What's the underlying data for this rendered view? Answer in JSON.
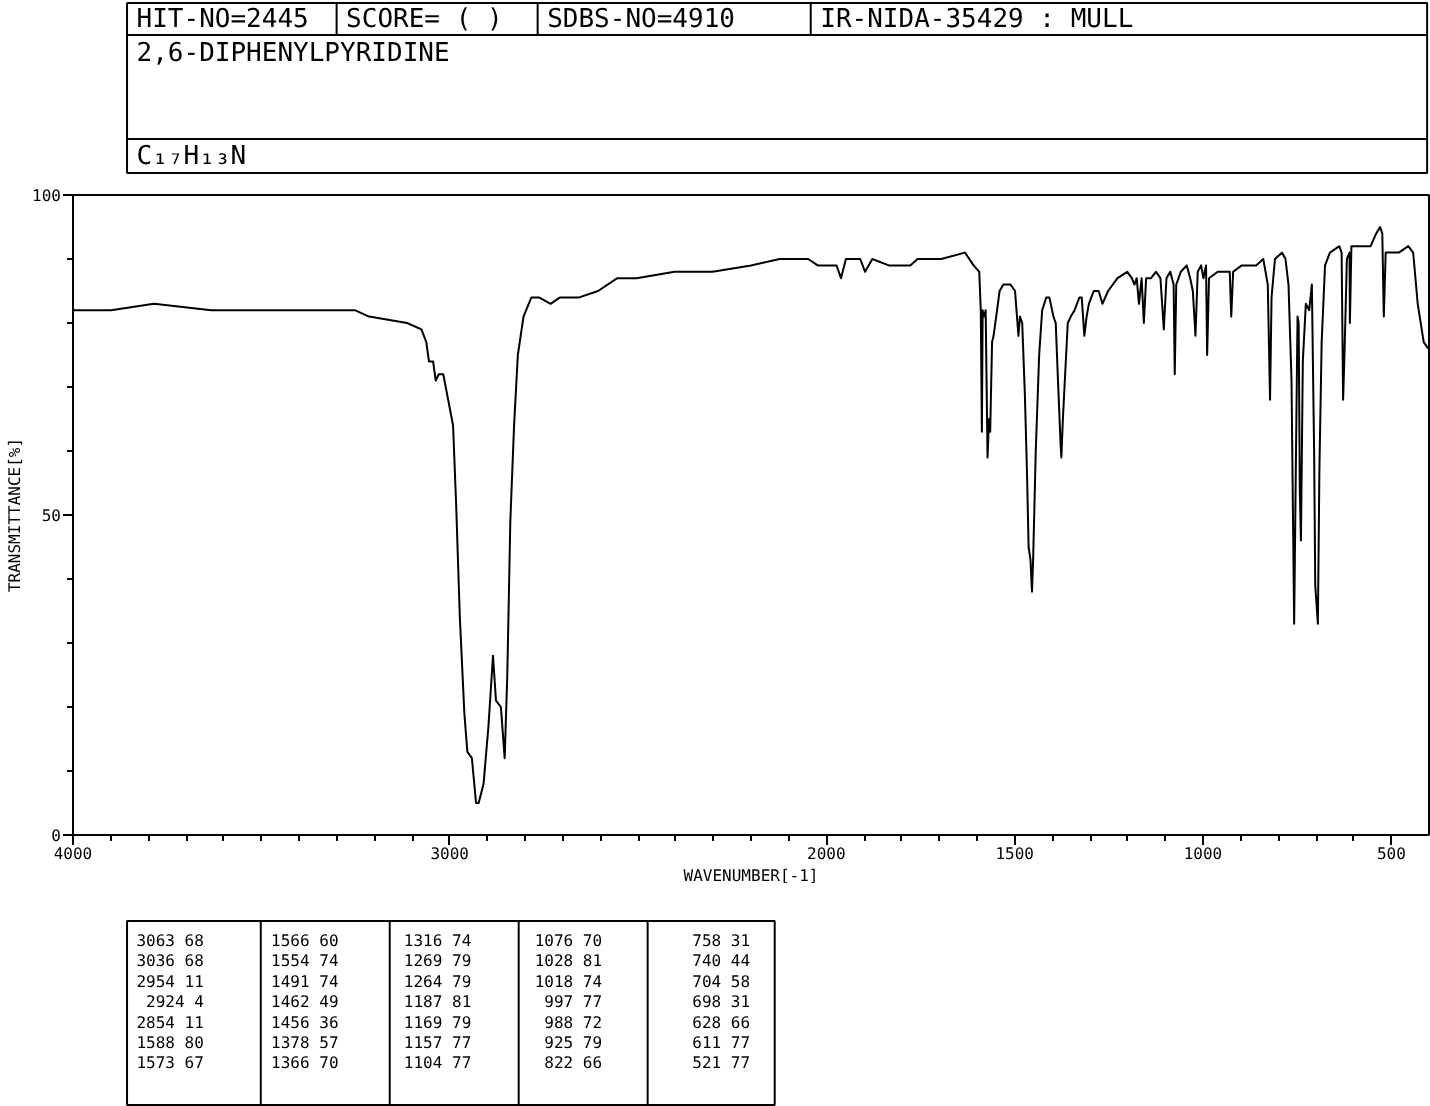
{
  "chart_data": {
    "type": "line",
    "title": "2,6-DIPHENYLPYRIDINE",
    "subtitle": "C₁₇H₁₃N",
    "xlabel": "WAVENUMBER[-1]",
    "ylabel": "TRANSMITTANCE[%]",
    "annotations": [
      "HIT-NO=2445",
      "SCORE=  (   )",
      "SDBS-NO=4910",
      "IR-NIDA-35429 : MULL",
      "3063 68",
      "3036 68",
      "2954 11",
      "2924 4",
      "2854 11",
      "1588 80",
      "1573 67",
      "1566 60",
      "1554 74",
      "1491 74",
      "1462 49",
      "1456 36",
      "1378 57",
      "1366 70",
      "1316 74",
      "1269 79",
      "1264 79",
      "1187 81",
      "1169 79",
      "1157 77",
      "1104 77",
      "1076 70",
      "1028 81",
      "1018 74",
      "997 77",
      "988 72",
      "925 79",
      "822 66",
      "758 31",
      "740 44",
      "704 58",
      "698 31",
      "628 66",
      "611 77",
      "521 77"
    ],
    "xlim": [
      4000,
      400
    ],
    "ylim": [
      0,
      100
    ],
    "xticks": [
      4000,
      {
        "value": 3900,
        "label": null
      },
      {
        "value": 3800,
        "label": null
      },
      {
        "value": 3700,
        "label": null
      },
      {
        "value": 3600,
        "label": null
      },
      {
        "value": 3500,
        "label": null
      },
      {
        "value": 3400,
        "label": null
      },
      {
        "value": 3300,
        "label": null
      },
      {
        "value": 3200,
        "label": null
      },
      {
        "value": 3100,
        "label": null
      },
      3000,
      {
        "value": 2900,
        "label": null
      },
      {
        "value": 2800,
        "label": null
      },
      {
        "value": 2700,
        "label": null
      },
      {
        "value": 2600,
        "label": null
      },
      {
        "value": 2500,
        "label": null
      },
      {
        "value": 2400,
        "label": null
      },
      {
        "value": 2300,
        "label": null
      },
      {
        "value": 2200,
        "label": null
      },
      {
        "value": 2100,
        "label": null
      },
      2000,
      {
        "value": 1900,
        "label": null
      },
      {
        "value": 1800,
        "label": null
      },
      {
        "value": 1700,
        "label": null
      },
      {
        "value": 1600,
        "label": null
      },
      1500,
      {
        "value": 1400,
        "label": null
      },
      {
        "value": 1300,
        "label": null
      },
      {
        "value": 1200,
        "label": null
      },
      {
        "value": 1100,
        "label": null
      },
      1000,
      {
        "value": 900,
        "label": null
      },
      {
        "value": 800,
        "label": null
      },
      {
        "value": 700,
        "label": null
      },
      {
        "value": 600,
        "label": null
      },
      500
    ],
    "yticks": [
      0,
      {
        "value": 10,
        "label": null
      },
      {
        "value": 20,
        "label": null
      },
      {
        "value": 30,
        "label": null
      },
      {
        "value": 40,
        "label": null
      },
      50,
      {
        "value": 60,
        "label": null
      },
      {
        "value": 70,
        "label": null
      },
      {
        "value": 80,
        "label": null
      },
      {
        "value": 90,
        "label": null
      },
      100
    ],
    "grid": false,
    "x": [
      4000,
      3899,
      3785,
      3633,
      3468,
      3252,
      3214,
      3113,
      3075,
      3062,
      3055,
      3044,
      3037,
      3029,
      3017,
      3004,
      2991,
      2983,
      2973,
      2961,
      2953,
      2941,
      2930,
      2923,
      2910,
      2897,
      2885,
      2877,
      2864,
      2854,
      2847,
      2839,
      2829,
      2819,
      2804,
      2783,
      2763,
      2732,
      2707,
      2656,
      2606,
      2555,
      2504,
      2403,
      2302,
      2200,
      2124,
      2048,
      2023,
      2011,
      1973,
      1961,
      1948,
      1910,
      1897,
      1878,
      1834,
      1815,
      1777,
      1758,
      1695,
      1632,
      1609,
      1594,
      1590,
      1587,
      1585,
      1581,
      1577,
      1572,
      1568,
      1565,
      1560,
      1556,
      1549,
      1540,
      1530,
      1511,
      1499,
      1490,
      1486,
      1480,
      1473,
      1467,
      1463,
      1458,
      1454,
      1451,
      1444,
      1435,
      1427,
      1416,
      1408,
      1397,
      1391,
      1385,
      1378,
      1376,
      1372,
      1366,
      1359,
      1351,
      1341,
      1328,
      1322,
      1315,
      1309,
      1303,
      1290,
      1277,
      1267,
      1252,
      1227,
      1201,
      1189,
      1182,
      1176,
      1170,
      1163,
      1157,
      1151,
      1138,
      1125,
      1113,
      1104,
      1097,
      1087,
      1078,
      1075,
      1071,
      1059,
      1043,
      1034,
      1027,
      1020,
      1014,
      1005,
      999,
      992,
      989,
      984,
      961,
      929,
      925,
      920,
      897,
      859,
      840,
      828,
      822,
      818,
      809,
      790,
      781,
      773,
      765,
      758,
      754,
      749,
      746,
      743,
      740,
      735,
      727,
      718,
      711,
      705,
      702,
      695,
      691,
      685,
      676,
      663,
      638,
      632,
      628,
      624,
      618,
      611,
      610,
      606,
      580,
      555,
      540,
      530,
      524,
      520,
      515,
      499,
      480,
      455,
      442,
      430,
      414,
      402
    ],
    "series": [
      {
        "color": "#000000",
        "values": [
          82,
          82,
          83,
          82,
          82,
          82,
          81,
          80,
          79,
          77,
          74,
          74,
          71,
          72,
          72,
          68,
          64,
          52,
          34,
          19,
          13,
          12,
          5,
          5,
          8,
          17,
          28,
          21,
          20,
          12,
          25,
          49,
          64,
          75,
          81,
          84,
          84,
          83,
          84,
          84,
          85,
          87,
          87,
          88,
          88,
          89,
          90,
          90,
          89,
          89,
          89,
          87,
          90,
          90,
          88,
          90,
          89,
          89,
          89,
          90,
          90,
          91,
          89,
          88,
          82,
          63,
          82,
          81,
          82,
          59,
          65,
          63,
          77,
          78,
          81,
          85,
          86,
          86,
          85,
          78,
          81,
          80,
          69,
          56,
          45,
          43,
          38,
          43,
          60,
          75,
          82,
          84,
          84,
          81,
          80,
          71,
          61,
          59,
          65,
          72,
          80,
          81,
          82,
          84,
          84,
          78,
          81,
          83,
          85,
          85,
          83,
          85,
          87,
          88,
          87,
          86,
          87,
          83,
          87,
          80,
          87,
          87,
          88,
          87,
          79,
          87,
          88,
          86,
          72,
          86,
          88,
          89,
          87,
          85,
          78,
          88,
          89,
          87,
          89,
          75,
          87,
          88,
          88,
          81,
          88,
          89,
          89,
          90,
          86,
          68,
          84,
          90,
          91,
          90,
          86,
          71,
          33,
          55,
          81,
          80,
          54,
          46,
          74,
          83,
          82,
          86,
          60,
          39,
          33,
          57,
          77,
          89,
          91,
          92,
          91,
          68,
          76,
          90,
          91,
          80,
          92,
          92,
          92,
          94,
          95,
          94,
          81,
          91,
          91,
          91,
          92,
          91,
          83,
          77,
          76
        ]
      }
    ]
  }
}
